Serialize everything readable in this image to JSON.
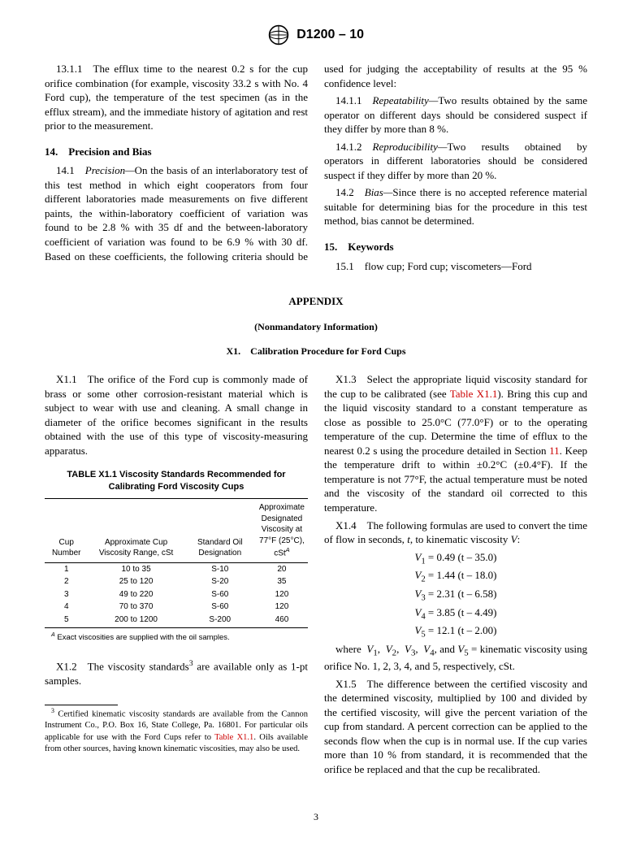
{
  "header": {
    "designation": "D1200 – 10",
    "logo_alt": "ASTM"
  },
  "colset1": {
    "p13_1_1": "13.1.1 The efflux time to the nearest 0.2 s for the cup orifice combination (for example, viscosity 33.2 s with No. 4 Ford cup), the temperature of the test specimen (as in the efflux stream), and the immediate history of agitation and rest prior to the measurement.",
    "h14": "14. Precision and Bias",
    "p14_1_lead": "14.1 ",
    "p14_1_term": "Precision—",
    "p14_1_body": "On the basis of an interlaboratory test of this test method in which eight cooperators from four different laboratories made measurements on five different paints, the within-laboratory coefficient of variation was found to be 2.8 % with 35 df and the between-laboratory coefficient of variation was found to be 6.9 % with 30 df. Based on these coefficients, the following criteria should be used for judging the acceptability of results at the 95 % confidence level:",
    "p14_1_1_lead": "14.1.1 ",
    "p14_1_1_term": "Repeatability—",
    "p14_1_1_body": "Two results obtained by the same operator on different days should be considered suspect if they differ by more than 8 %.",
    "p14_1_2_lead": "14.1.2 ",
    "p14_1_2_term": "Reproducibility—",
    "p14_1_2_body": "Two results obtained by operators in different laboratories should be considered suspect if they differ by more than 20 %.",
    "p14_2_lead": "14.2 ",
    "p14_2_term": "Bias—",
    "p14_2_body": "Since there is no accepted reference material suitable for determining bias for the procedure in this test method, bias cannot be determined.",
    "h15": "15. Keywords",
    "p15_1": "15.1 flow cup; Ford cup; viscometers—Ford"
  },
  "appendix": {
    "title": "APPENDIX",
    "nonmandatory": "(Nonmandatory Information)",
    "x1": "X1. Calibration Procedure for Ford Cups"
  },
  "colset2": {
    "pX1_1": "X1.1 The orifice of the Ford cup is commonly made of brass or some other corrosion-resistant material which is subject to wear with use and cleaning. A small change in diameter of the orifice becomes significant in the results obtained with the use of this type of viscosity-measuring apparatus.",
    "table_title": "TABLE X1.1 Viscosity Standards Recommended for Calibrating Ford Viscosity Cups",
    "table_headers": [
      "Cup Number",
      "Approximate Cup Viscosity Range, cSt",
      "Standard Oil Designation",
      "Approximate Designated Viscosity at 77°F (25°C), cStᴬ"
    ],
    "table_rows": [
      [
        "1",
        "10 to 35",
        "S-10",
        "20"
      ],
      [
        "2",
        "25 to 120",
        "S-20",
        "35"
      ],
      [
        "3",
        "49 to 220",
        "S-60",
        "120"
      ],
      [
        "4",
        "70 to 370",
        "S-60",
        "120"
      ],
      [
        "5",
        "200 to 1200",
        "S-200",
        "460"
      ]
    ],
    "table_note_sup": "A",
    "table_note": " Exact viscosities are supplied with the oil samples.",
    "pX1_2_a": "X1.2 The viscosity standards",
    "pX1_2_sup": "3",
    "pX1_2_b": " are available only as 1-pt samples.",
    "footnote_sup": "3",
    "footnote_a": " Certified kinematic viscosity standards are available from the Cannon Instrument Co., P.O. Box 16, State College, Pa. 16801. For particular oils applicable for use with the Ford Cups refer to ",
    "footnote_link": "Table X1.1",
    "footnote_b": ". Oils available from other sources, having known kinematic viscosities, may also be used.",
    "pX1_3_a": "X1.3 Select the appropriate liquid viscosity standard for the cup to be calibrated (see ",
    "pX1_3_link": "Table X1.1",
    "pX1_3_b": "). Bring this cup and the liquid viscosity standard to a constant temperature as close as possible to 25.0°C (77.0°F) or to the operating temperature of the cup. Determine the time of efflux to the nearest 0.2 s using the procedure detailed in Section ",
    "pX1_3_link2": "11",
    "pX1_3_c": ". Keep the temperature drift to within ±0.2°C (±0.4°F). If the temperature is not 77°F, the actual temperature must be noted and the viscosity of the standard oil corrected to this temperature.",
    "pX1_4_a": "X1.4 The following formulas are used to convert the time of flow in seconds, ",
    "pX1_4_t": "t",
    "pX1_4_b": ", to kinematic viscosity ",
    "pX1_4_V": "V",
    "pX1_4_c": ":",
    "eqs": [
      {
        "sub": "1",
        "k": "0.49",
        "c": "35.0"
      },
      {
        "sub": "2",
        "k": "1.44",
        "c": "18.0"
      },
      {
        "sub": "3",
        "k": "2.31",
        "c": "6.58"
      },
      {
        "sub": "4",
        "k": "3.85",
        "c": "4.49"
      },
      {
        "sub": "5",
        "k": "12.1",
        "c": "2.00"
      }
    ],
    "pX1_4_where_a": "where  ",
    "pX1_4_where_b": ",  ",
    "pX1_4_where_c": ", and ",
    "pX1_4_where_d": " = kinematic viscosity using orifice No. 1, 2, 3, 4, and 5, respectively, cSt.",
    "pX1_5": "X1.5 The difference between the certified viscosity and the determined viscosity, multiplied by 100 and divided by the certified viscosity, will give the percent variation of the cup from standard. A percent correction can be applied to the seconds flow when the cup is in normal use. If the cup varies more than 10 % from standard, it is recommended that the orifice be replaced and that the cup be recalibrated."
  },
  "page_number": "3"
}
